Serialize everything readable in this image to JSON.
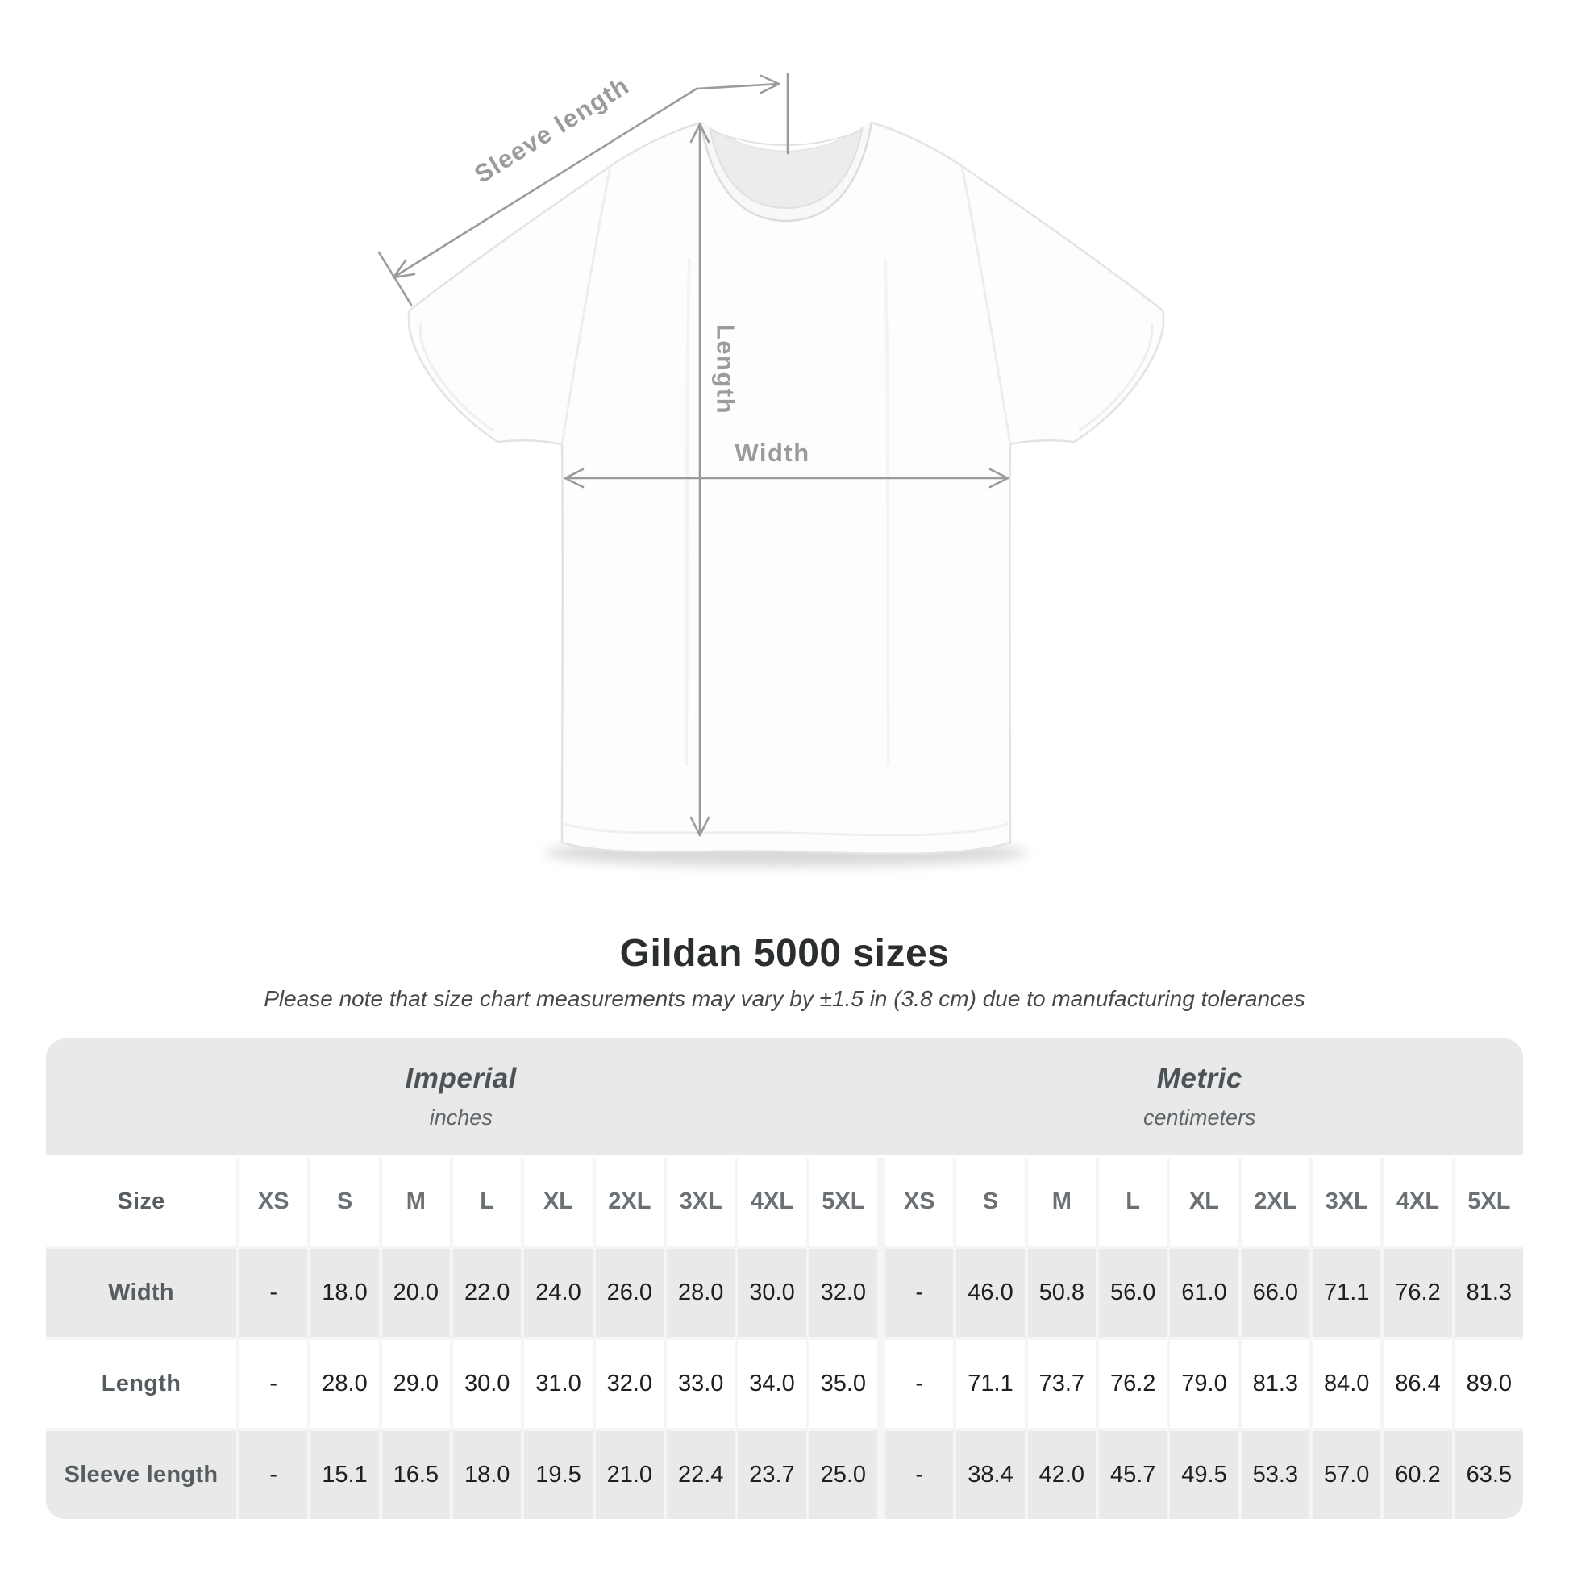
{
  "diagram": {
    "labels": {
      "sleeve_length": "Sleeve length",
      "length": "Length",
      "width": "Width"
    }
  },
  "chart_data": {
    "type": "table",
    "title": "Gildan 5000 sizes",
    "note": "Please note that size chart measurements may vary by ±1.5 in (3.8 cm) due to manufacturing tolerances",
    "corner_label": "Size",
    "column_groups": [
      {
        "label": "Imperial",
        "sublabel": "inches"
      },
      {
        "label": "Metric",
        "sublabel": "centimeters"
      }
    ],
    "sizes": [
      "XS",
      "S",
      "M",
      "L",
      "XL",
      "2XL",
      "3XL",
      "4XL",
      "5XL"
    ],
    "rows": [
      {
        "label": "Width",
        "imperial": [
          "-",
          "18.0",
          "20.0",
          "22.0",
          "24.0",
          "26.0",
          "28.0",
          "30.0",
          "32.0"
        ],
        "metric": [
          "-",
          "46.0",
          "50.8",
          "56.0",
          "61.0",
          "66.0",
          "71.1",
          "76.2",
          "81.3"
        ]
      },
      {
        "label": "Length",
        "imperial": [
          "-",
          "28.0",
          "29.0",
          "30.0",
          "31.0",
          "32.0",
          "33.0",
          "34.0",
          "35.0"
        ],
        "metric": [
          "-",
          "71.1",
          "73.7",
          "76.2",
          "79.0",
          "81.3",
          "84.0",
          "86.4",
          "89.0"
        ]
      },
      {
        "label": "Sleeve length",
        "imperial": [
          "-",
          "15.1",
          "16.5",
          "18.0",
          "19.5",
          "21.0",
          "22.4",
          "23.7",
          "25.0"
        ],
        "metric": [
          "-",
          "38.4",
          "42.0",
          "45.7",
          "49.5",
          "53.3",
          "57.0",
          "60.2",
          "63.5"
        ]
      }
    ]
  },
  "colors": {
    "annotation": "#9b9b9b",
    "title-text": "#2b2e30",
    "subtitle-text": "#474747",
    "band-text": "#4c5357",
    "band-bg": "#e9e9e9",
    "row-alt-bg": "#e9e9e9",
    "grid-line": "#f5f5f5",
    "header-text": "#6a7074",
    "label-text": "#565d61",
    "value-text": "#1f1f1f"
  }
}
